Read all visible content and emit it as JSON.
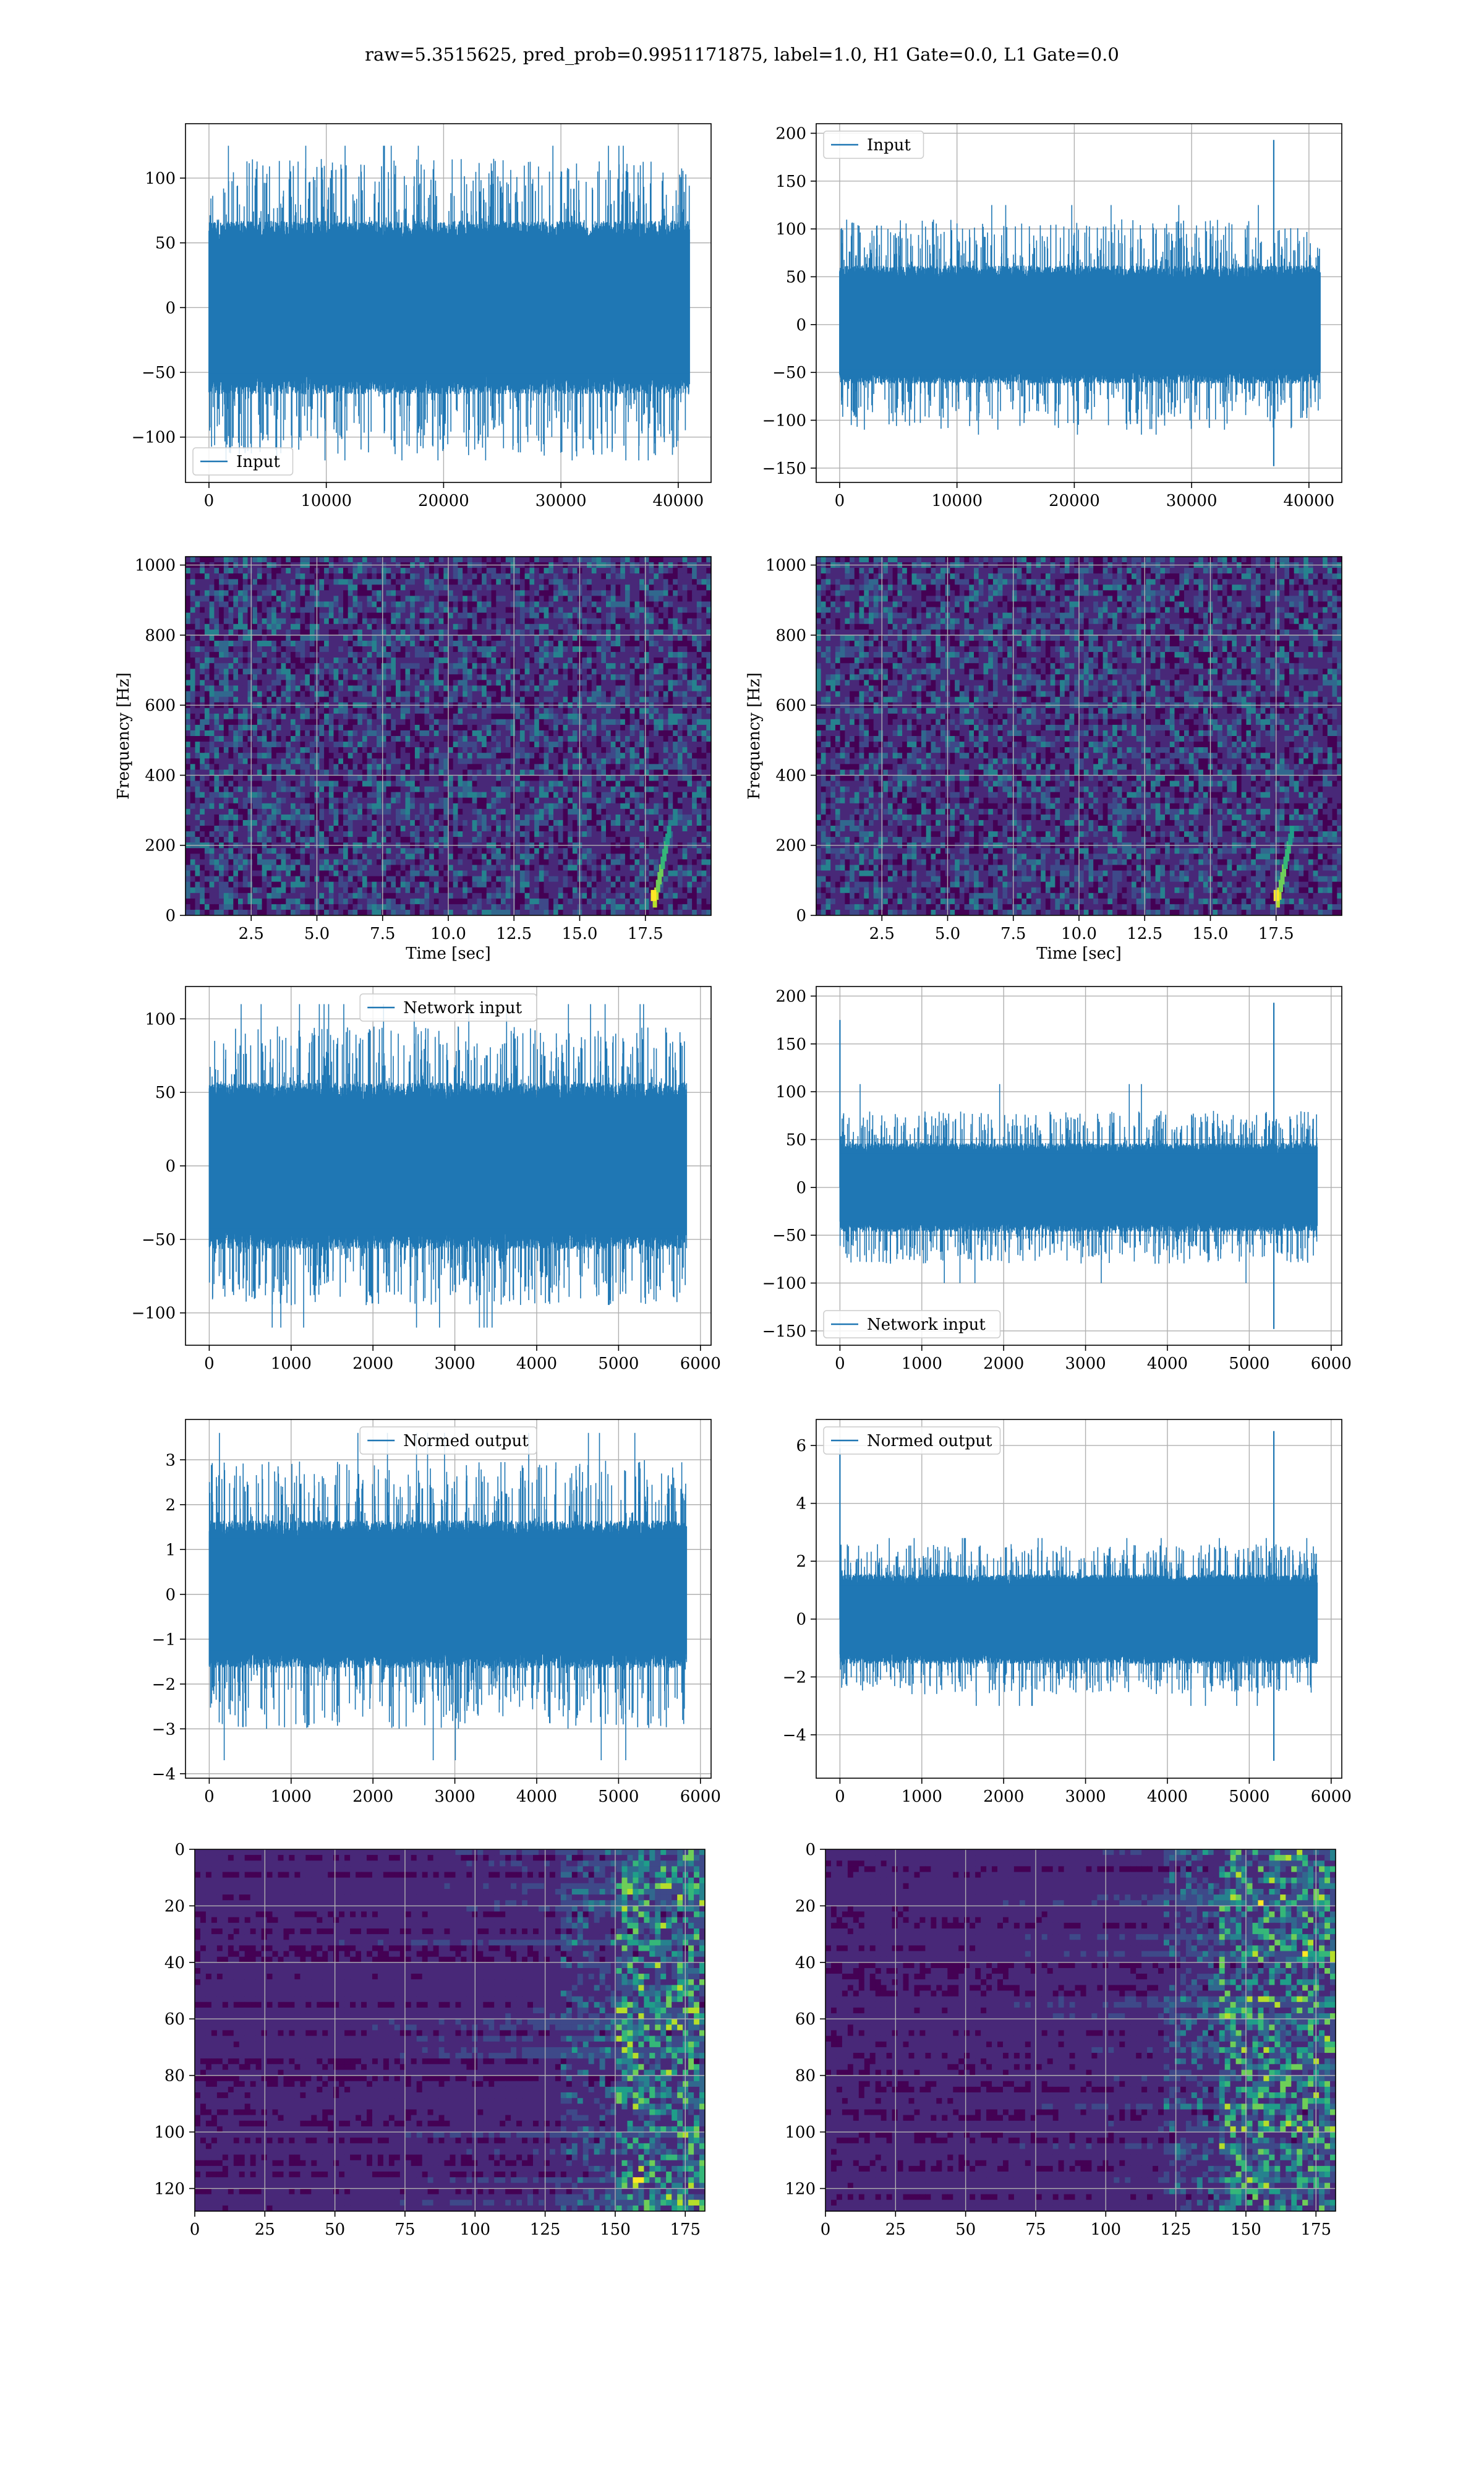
{
  "figure": {
    "suptitle": "raw=5.3515625, pred_prob=0.9951171875, label=1.0, H1 Gate=0.0, L1 Gate=0.0"
  },
  "colors": {
    "line": "#1f77b4",
    "grid": "#b0b0b0",
    "viridis": [
      "#440154",
      "#482878",
      "#3e4989",
      "#31688e",
      "#26828e",
      "#1f9e89",
      "#35b779",
      "#6ece58",
      "#b5de2b",
      "#fde725"
    ]
  },
  "chart_data": [
    {
      "id": "h1-input",
      "type": "line",
      "kind": "noise",
      "series": [
        {
          "name": "Input"
        }
      ],
      "legend": "lower-left",
      "xlim": [
        -2000,
        42800
      ],
      "ylim": [
        -135,
        142
      ],
      "xticks": [
        0,
        10000,
        20000,
        30000,
        40000
      ],
      "yticks": [
        -100,
        -50,
        0,
        50,
        100
      ],
      "x_end": 40960,
      "noise": {
        "body": 65,
        "spike": 115,
        "min_peak": 125,
        "max_peak": -118
      },
      "grid": true
    },
    {
      "id": "l1-input",
      "type": "line",
      "kind": "noise",
      "series": [
        {
          "name": "Input"
        }
      ],
      "legend": "upper-left",
      "xlim": [
        -2000,
        42800
      ],
      "ylim": [
        -165,
        210
      ],
      "xticks": [
        0,
        10000,
        20000,
        30000,
        40000
      ],
      "yticks": [
        -150,
        -100,
        -50,
        0,
        50,
        100,
        150,
        200
      ],
      "x_end": 40960,
      "noise": {
        "body": 60,
        "spike": 110,
        "min_peak": 125,
        "max_peak": -115,
        "events": [
          {
            "x": 37000,
            "y": 193
          },
          {
            "x": 37000,
            "y": -148
          }
        ]
      },
      "grid": true
    },
    {
      "id": "h1-spectrogram",
      "type": "heatmap",
      "kind": "spectrogram",
      "xlabel": "Time [sec]",
      "ylabel": "Frequency [Hz]",
      "xlim": [
        0,
        20
      ],
      "ylim": [
        0,
        1024
      ],
      "xticks": [
        2.5,
        5.0,
        7.5,
        10.0,
        12.5,
        15.0,
        17.5
      ],
      "xtick_labels": [
        "2.5",
        "5.0",
        "7.5",
        "10.0",
        "12.5",
        "15.0",
        "17.5"
      ],
      "yticks": [
        0,
        200,
        400,
        600,
        800,
        1000
      ],
      "chirp_time": 18.2,
      "grid": true
    },
    {
      "id": "l1-spectrogram",
      "type": "heatmap",
      "kind": "spectrogram",
      "xlabel": "Time [sec]",
      "ylabel": "Frequency [Hz]",
      "xlim": [
        0,
        20
      ],
      "ylim": [
        0,
        1024
      ],
      "xticks": [
        2.5,
        5.0,
        7.5,
        10.0,
        12.5,
        15.0,
        17.5
      ],
      "xtick_labels": [
        "2.5",
        "5.0",
        "7.5",
        "10.0",
        "12.5",
        "15.0",
        "17.5"
      ],
      "yticks": [
        0,
        200,
        400,
        600,
        800,
        1000
      ],
      "chirp_time": 17.9,
      "grid": true
    },
    {
      "id": "h1-network-input",
      "type": "line",
      "kind": "noise",
      "series": [
        {
          "name": "Network input"
        }
      ],
      "legend": "upper-center",
      "xlim": [
        -290,
        6130
      ],
      "ylim": [
        -122,
        122
      ],
      "xticks": [
        0,
        1000,
        2000,
        3000,
        4000,
        5000,
        6000
      ],
      "yticks": [
        -100,
        -50,
        0,
        50,
        100
      ],
      "x_end": 5830,
      "noise": {
        "body": 55,
        "spike": 95,
        "min_peak": 110,
        "max_peak": -110
      },
      "grid": true
    },
    {
      "id": "l1-network-input",
      "type": "line",
      "kind": "noise",
      "series": [
        {
          "name": "Network input"
        }
      ],
      "legend": "lower-left",
      "xlim": [
        -290,
        6130
      ],
      "ylim": [
        -165,
        210
      ],
      "xticks": [
        0,
        1000,
        2000,
        3000,
        4000,
        5000,
        6000
      ],
      "yticks": [
        -150,
        -100,
        -50,
        0,
        50,
        100,
        150,
        200
      ],
      "x_end": 5830,
      "noise": {
        "body": 45,
        "spike": 80,
        "min_peak": 108,
        "max_peak": -100,
        "events": [
          {
            "x": 0,
            "y": 175
          },
          {
            "x": 5300,
            "y": 193
          },
          {
            "x": 5300,
            "y": -148
          }
        ]
      },
      "grid": true
    },
    {
      "id": "h1-normed-output",
      "type": "line",
      "kind": "noise",
      "series": [
        {
          "name": "Normed output"
        }
      ],
      "legend": "upper-center",
      "xlim": [
        -290,
        6130
      ],
      "ylim": [
        -4.1,
        3.9
      ],
      "xticks": [
        0,
        1000,
        2000,
        3000,
        4000,
        5000,
        6000
      ],
      "yticks": [
        -4,
        -3,
        -2,
        -1,
        0,
        1,
        2,
        3
      ],
      "x_end": 5830,
      "noise": {
        "body": 1.6,
        "spike": 3.0,
        "min_peak": 3.6,
        "max_peak": -3.7
      },
      "grid": true
    },
    {
      "id": "l1-normed-output",
      "type": "line",
      "kind": "noise",
      "series": [
        {
          "name": "Normed output"
        }
      ],
      "legend": "upper-left",
      "xlim": [
        -290,
        6130
      ],
      "ylim": [
        -5.5,
        6.9
      ],
      "xticks": [
        0,
        1000,
        2000,
        3000,
        4000,
        5000,
        6000
      ],
      "yticks": [
        -4,
        -2,
        0,
        2,
        4,
        6
      ],
      "x_end": 5830,
      "noise": {
        "body": 1.5,
        "spike": 2.6,
        "min_peak": 2.8,
        "max_peak": -3.0,
        "events": [
          {
            "x": 0,
            "y": 5.9
          },
          {
            "x": 5300,
            "y": 6.5
          },
          {
            "x": 5300,
            "y": -4.9
          }
        ]
      },
      "grid": true
    },
    {
      "id": "h1-feature-map",
      "type": "heatmap",
      "kind": "featuremap",
      "xlim": [
        0,
        182
      ],
      "ylim": [
        128,
        0
      ],
      "xticks": [
        0,
        25,
        50,
        75,
        100,
        125,
        150,
        175
      ],
      "yticks": [
        0,
        20,
        40,
        60,
        80,
        100,
        120
      ],
      "active_from": 150,
      "grid": true
    },
    {
      "id": "l1-feature-map",
      "type": "heatmap",
      "kind": "featuremap",
      "xlim": [
        0,
        182
      ],
      "ylim": [
        128,
        0
      ],
      "xticks": [
        0,
        25,
        50,
        75,
        100,
        125,
        150,
        175
      ],
      "yticks": [
        0,
        20,
        40,
        60,
        80,
        100,
        120
      ],
      "active_from": 140,
      "grid": true
    }
  ]
}
